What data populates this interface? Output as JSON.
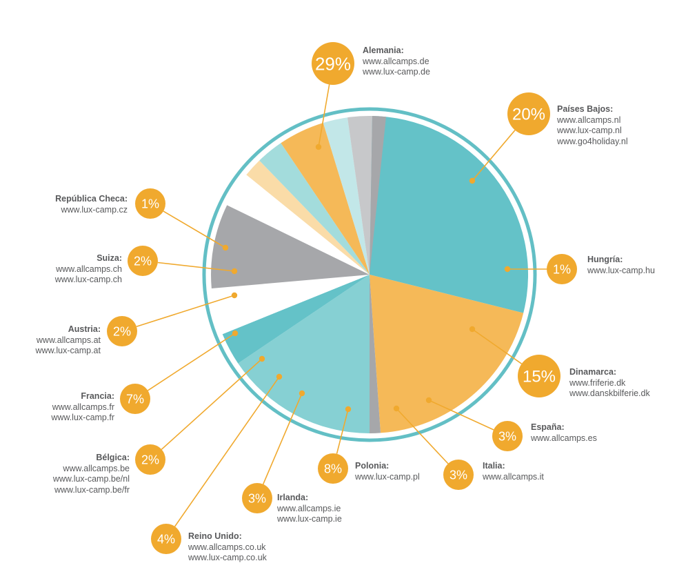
{
  "chart_data": {
    "type": "pie",
    "colors": {
      "teal": "#64c2c8",
      "light_teal": "#86d0d3",
      "orange": "#f5b958",
      "pale_teal": "#c2e7e8",
      "peach": "#fadca8",
      "gray": "#a6a7aa",
      "light_gray": "#c7c8ca",
      "ring": "#63bfc5",
      "bubble": "#f0a92e",
      "leader": "#f0a92e"
    },
    "slices": [
      {
        "country": "Alemania:",
        "pct_label": "29%",
        "value": 29,
        "urls": [
          "www.allcamps.de",
          "www.lux-camp.de"
        ],
        "color": "#64c2c8"
      },
      {
        "country": "Países Bajos:",
        "pct_label": "20%",
        "value": 20,
        "urls": [
          "www.allcamps.nl",
          "www.lux-camp.nl",
          "www.go4holiday.nl"
        ],
        "color": "#f5b958"
      },
      {
        "country": "Hungría:",
        "pct_label": "1%",
        "value": 1,
        "urls": [
          "www.lux-camp.hu"
        ],
        "color": "#a6a7aa"
      },
      {
        "country": "Dinamarca:",
        "pct_label": "15%",
        "value": 15,
        "urls": [
          "www.friferie.dk",
          "www.danskbilferie.dk"
        ],
        "color": "#86d0d3"
      },
      {
        "country": "España:",
        "pct_label": "3%",
        "value": 3,
        "urls": [
          "www.allcamps.es"
        ],
        "color": "#64c2c8"
      },
      {
        "country": "Italia:",
        "pct_label": "3%",
        "value": 3,
        "urls": [
          "www.allcamps.it"
        ],
        "color": "#ffffff"
      },
      {
        "country": "Polonia:",
        "pct_label": "8%",
        "value": 8,
        "urls": [
          "www.lux-camp.pl"
        ],
        "color": "#a6a7aa"
      },
      {
        "country": "Irlanda:",
        "pct_label": "3%",
        "value": 3,
        "urls": [
          "www.allcamps.ie",
          "www.lux-camp.ie"
        ],
        "color": "#ffffff"
      },
      {
        "country": "Reino Unido:",
        "pct_label": "4%",
        "value": 4,
        "urls": [
          "www.allcamps.co.uk",
          "www.lux-camp.co.uk"
        ],
        "color": "#fadca8"
      },
      {
        "country": "Bélgica:",
        "pct_label": "2%",
        "value": 2,
        "urls": [
          "www.allcamps.be",
          "www.lux-camp.be/nl",
          "www.lux-camp.be/fr"
        ],
        "color": "#a3dcdc"
      },
      {
        "country": "Francia:",
        "pct_label": "7%",
        "value": 7,
        "urls": [
          "www.allcamps.fr",
          "www.lux-camp.fr"
        ],
        "color": "#f5b958"
      },
      {
        "country": "Austria:",
        "pct_label": "2%",
        "value": 2,
        "urls": [
          "www.allcamps.at",
          "www.lux-camp.at"
        ],
        "color": "#c2e7e8"
      },
      {
        "country": "Suiza:",
        "pct_label": "2%",
        "value": 2,
        "urls": [
          "www.allcamps.ch",
          "www.lux-camp.ch"
        ],
        "color": "#c7c8ca"
      },
      {
        "country": "República Checa:",
        "pct_label": "1%",
        "value": 1,
        "urls": [
          "www.lux-camp.cz"
        ],
        "color": "#a6a7aa"
      }
    ]
  }
}
